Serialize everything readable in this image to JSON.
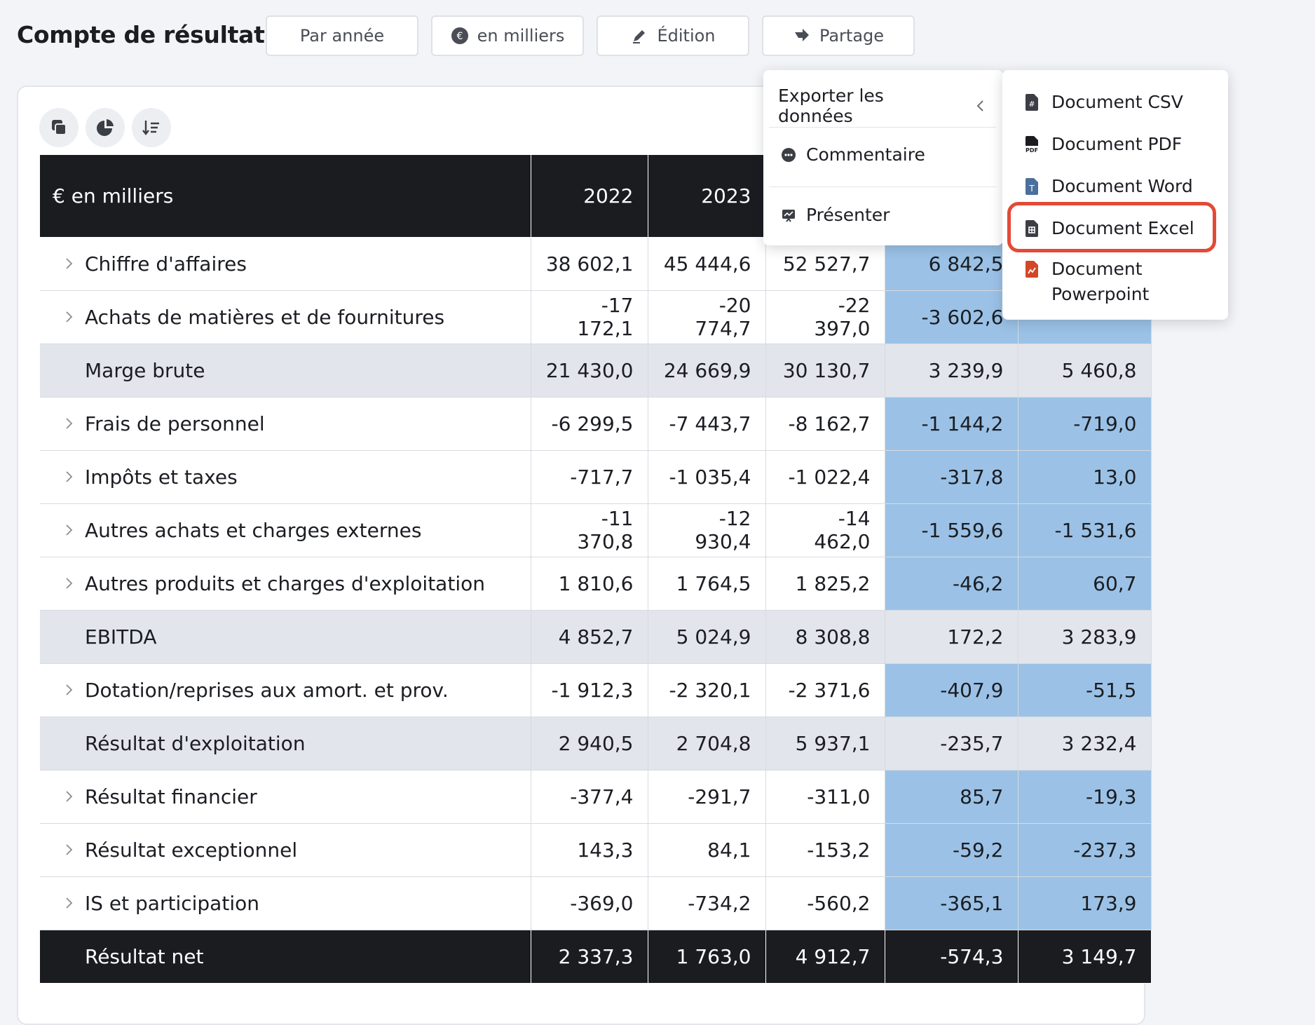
{
  "page": {
    "title": "Compte de résultat"
  },
  "toolbar": {
    "by_year": "Par année",
    "units": "en milliers",
    "edit": "Édition",
    "share": "Partage"
  },
  "table": {
    "unit_header": "€ en milliers",
    "columns": [
      "2022",
      "2023",
      "",
      "",
      ""
    ],
    "rows": [
      {
        "label": "Chiffre d'affaires",
        "v": [
          "38 602,1",
          "45 444,6",
          "52 527,7",
          "6 842,5",
          ""
        ]
      },
      {
        "label": "Achats de matières et de fournitures",
        "v": [
          "-17 172,1",
          "-20 774,7",
          "-22 397,0",
          "-3 602,6",
          ""
        ]
      },
      {
        "label": "Marge brute",
        "v": [
          "21 430,0",
          "24 669,9",
          "30 130,7",
          "3 239,9",
          "5 460,8"
        ]
      },
      {
        "label": "Frais de personnel",
        "v": [
          "-6 299,5",
          "-7 443,7",
          "-8 162,7",
          "-1 144,2",
          "-719,0"
        ]
      },
      {
        "label": "Impôts et taxes",
        "v": [
          "-717,7",
          "-1 035,4",
          "-1 022,4",
          "-317,8",
          "13,0"
        ]
      },
      {
        "label": "Autres achats et charges externes",
        "v": [
          "-11 370,8",
          "-12 930,4",
          "-14 462,0",
          "-1 559,6",
          "-1 531,6"
        ]
      },
      {
        "label": "Autres produits et charges d'exploitation",
        "v": [
          "1 810,6",
          "1 764,5",
          "1 825,2",
          "-46,2",
          "60,7"
        ]
      },
      {
        "label": "EBITDA",
        "v": [
          "4 852,7",
          "5 024,9",
          "8 308,8",
          "172,2",
          "3 283,9"
        ]
      },
      {
        "label": "Dotation/reprises aux amort. et prov.",
        "v": [
          "-1 912,3",
          "-2 320,1",
          "-2 371,6",
          "-407,9",
          "-51,5"
        ]
      },
      {
        "label": "Résultat d'exploitation",
        "v": [
          "2 940,5",
          "2 704,8",
          "5 937,1",
          "-235,7",
          "3 232,4"
        ]
      },
      {
        "label": "Résultat financier",
        "v": [
          "-377,4",
          "-291,7",
          "-311,0",
          "85,7",
          "-19,3"
        ]
      },
      {
        "label": "Résultat exceptionnel",
        "v": [
          "143,3",
          "84,1",
          "-153,2",
          "-59,2",
          "-237,3"
        ]
      },
      {
        "label": "IS et participation",
        "v": [
          "-369,0",
          "-734,2",
          "-560,2",
          "-365,1",
          "173,9"
        ]
      },
      {
        "label": "Résultat net",
        "v": [
          "2 337,3",
          "1 763,0",
          "4 912,7",
          "-574,3",
          "3 149,7"
        ]
      }
    ]
  },
  "share_menu": {
    "export": "Exporter les données",
    "comment": "Commentaire",
    "present": "Présenter"
  },
  "export_menu": {
    "csv": "Document CSV",
    "pdf": "Document PDF",
    "word": "Document Word",
    "excel": "Document Excel",
    "ppt_line1": "Document",
    "ppt_line2": "Powerpoint"
  }
}
